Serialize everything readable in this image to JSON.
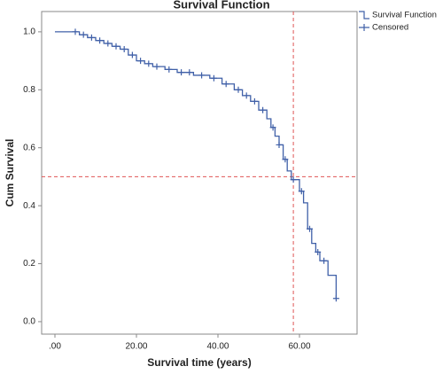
{
  "chart_data": {
    "type": "step",
    "title": "Survival Function",
    "x_label": "Survival time (years)",
    "y_label": "Cum Survival",
    "xlim": [
      -3.26,
      74.13
    ],
    "ylim": [
      -0.043,
      1.07
    ],
    "xticks": [
      {
        "value": 0,
        "label": ".00"
      },
      {
        "value": 20,
        "label": "20.00"
      },
      {
        "value": 40,
        "label": "40.00"
      },
      {
        "value": 60,
        "label": "60.00"
      }
    ],
    "yticks": [
      {
        "value": 0,
        "label": "0.0"
      },
      {
        "value": 0.2,
        "label": "0.2"
      },
      {
        "value": 0.4,
        "label": "0.4"
      },
      {
        "value": 0.6,
        "label": "0.6"
      },
      {
        "value": 0.8,
        "label": "0.8"
      },
      {
        "value": 1,
        "label": "1.0"
      }
    ],
    "reference_lines": {
      "x": 58.5,
      "y": 0.5,
      "color": "#e05555"
    },
    "series": [
      {
        "name": "Survival Function",
        "color": "#4060a8",
        "drawstyle": "steps-post",
        "x": [
          0,
          6,
          8,
          10,
          12,
          14,
          16,
          18,
          20,
          22,
          24,
          27,
          30,
          34,
          38,
          41,
          44,
          46,
          48,
          50,
          52,
          53,
          54,
          55,
          56,
          57,
          58,
          60,
          61,
          62,
          63,
          64,
          65,
          67,
          69
        ],
        "values": [
          1.0,
          0.99,
          0.98,
          0.97,
          0.96,
          0.95,
          0.94,
          0.92,
          0.9,
          0.89,
          0.88,
          0.87,
          0.86,
          0.85,
          0.84,
          0.82,
          0.8,
          0.78,
          0.76,
          0.73,
          0.7,
          0.67,
          0.64,
          0.61,
          0.56,
          0.52,
          0.49,
          0.45,
          0.41,
          0.32,
          0.27,
          0.24,
          0.21,
          0.16,
          0.08
        ]
      },
      {
        "name": "Censored",
        "color": "#4060a8",
        "marker": "+",
        "x": [
          5,
          7,
          9,
          11,
          13,
          15,
          17,
          19,
          21,
          23,
          25,
          28,
          31,
          33,
          36,
          39,
          42,
          45,
          47,
          49,
          51,
          53.5,
          55,
          56.5,
          58.5,
          60.5,
          62.5,
          64.5,
          66,
          69
        ],
        "values": [
          1.0,
          0.99,
          0.98,
          0.97,
          0.96,
          0.95,
          0.94,
          0.92,
          0.9,
          0.89,
          0.88,
          0.87,
          0.86,
          0.86,
          0.85,
          0.84,
          0.82,
          0.8,
          0.78,
          0.76,
          0.73,
          0.67,
          0.61,
          0.56,
          0.49,
          0.45,
          0.32,
          0.24,
          0.21,
          0.08
        ]
      }
    ]
  }
}
